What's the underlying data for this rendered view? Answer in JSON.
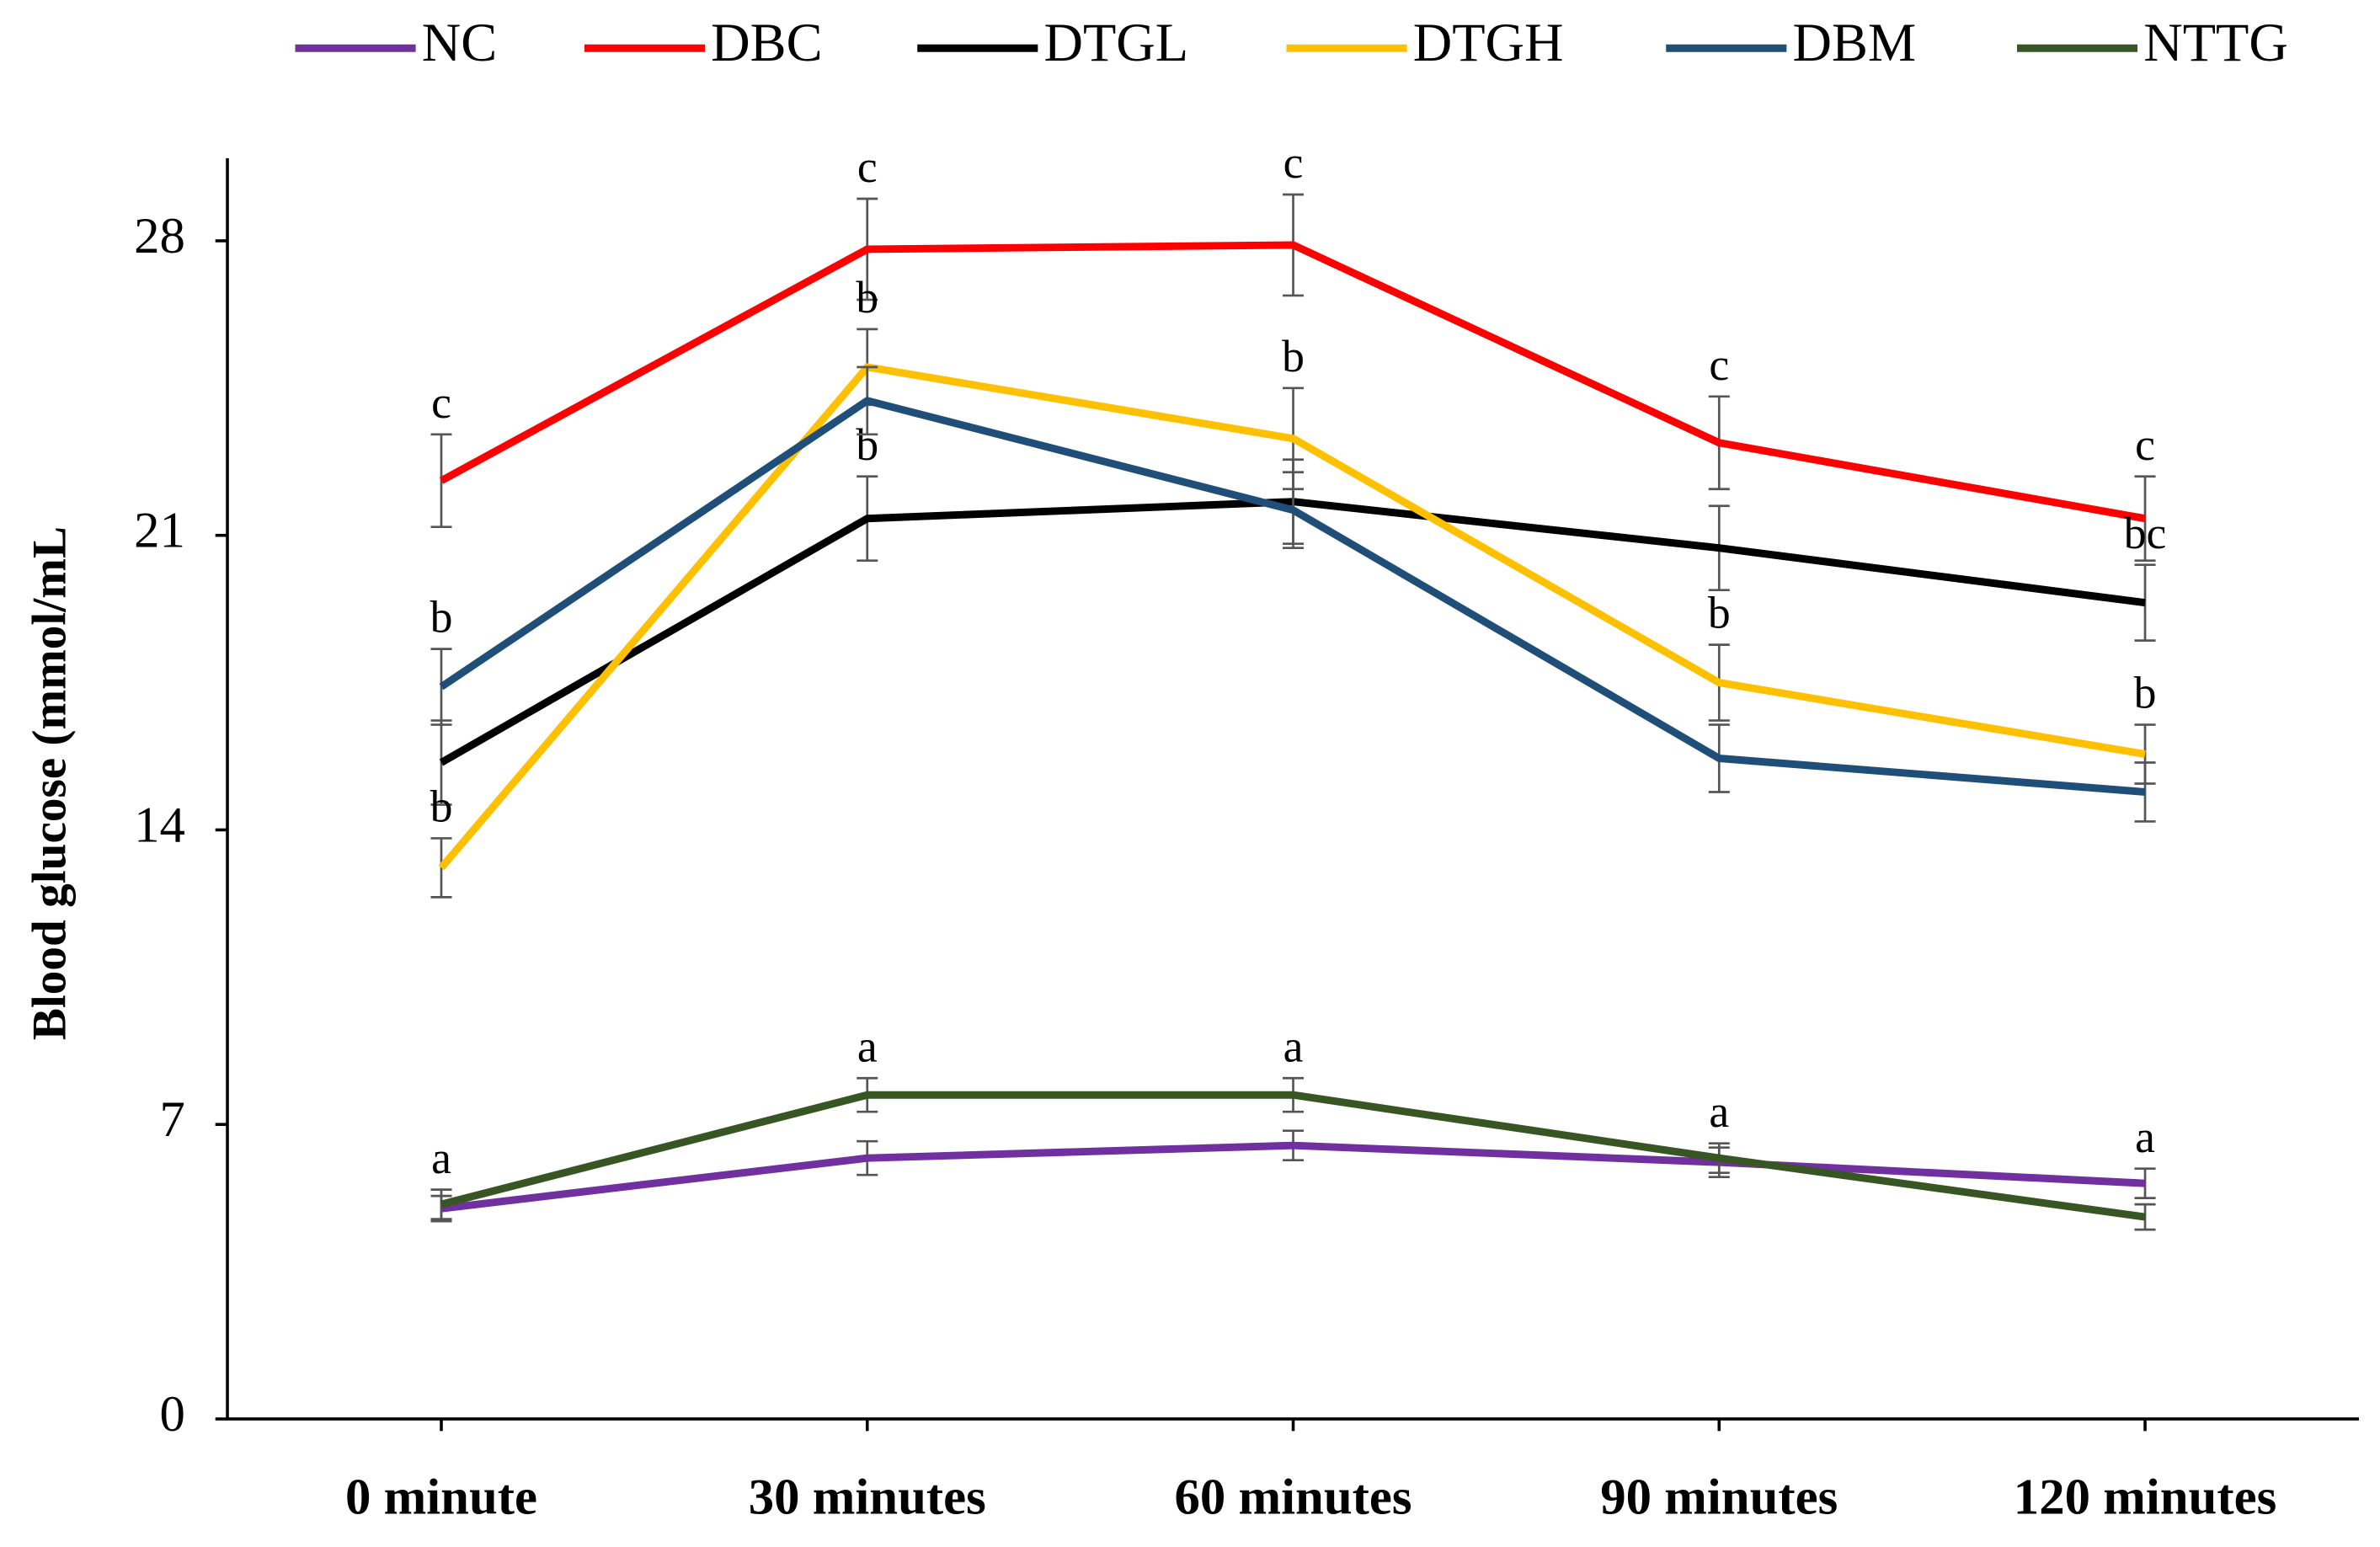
{
  "chart_data": {
    "type": "line",
    "y_label": "Blood glucose (mmol/mL",
    "categories": [
      "0 minute",
      "30 minutes",
      "60 minutes",
      "90 minutes",
      "120 minutes"
    ],
    "ylim": [
      0,
      30
    ],
    "yticks": [
      0,
      7,
      14,
      21,
      28
    ],
    "series": [
      {
        "name": "NC",
        "color": "#7030a0",
        "values": [
          5.0,
          6.2,
          6.5,
          6.1,
          5.6
        ],
        "errors": [
          0.3,
          0.4,
          0.35,
          0.35,
          0.35
        ],
        "letters": [
          null,
          null,
          null,
          null,
          "a"
        ]
      },
      {
        "name": "DBC",
        "color": "#ff0000",
        "values": [
          22.3,
          27.8,
          27.9,
          23.2,
          21.4
        ],
        "errors": [
          1.1,
          1.2,
          1.2,
          1.1,
          1.0
        ],
        "letters": [
          "c",
          "c",
          "c",
          "c",
          "c"
        ]
      },
      {
        "name": "DTGL",
        "color": "#000000",
        "values": [
          15.6,
          21.4,
          21.8,
          20.7,
          19.4
        ],
        "errors": [
          1.0,
          1.0,
          1.0,
          1.0,
          0.9
        ],
        "letters": [
          null,
          "b",
          null,
          null,
          "bc"
        ]
      },
      {
        "name": "DTGH",
        "color": "#ffc000",
        "values": [
          13.1,
          25.0,
          23.3,
          17.5,
          15.8
        ],
        "errors": [
          0.7,
          0.9,
          1.2,
          0.9,
          0.7
        ],
        "letters": [
          "b",
          "b",
          "b",
          "b",
          "b"
        ]
      },
      {
        "name": "DBM",
        "color": "#1f4e79",
        "values": [
          17.4,
          24.2,
          21.6,
          15.7,
          14.9
        ],
        "errors": [
          0.9,
          0.8,
          0.9,
          0.8,
          0.7
        ],
        "letters": [
          "b",
          null,
          null,
          null,
          null
        ]
      },
      {
        "name": "NTTG",
        "color": "#375623",
        "values": [
          5.1,
          7.7,
          7.7,
          6.2,
          4.8
        ],
        "errors": [
          0.35,
          0.4,
          0.4,
          0.35,
          0.3
        ],
        "letters": [
          "a",
          "a",
          "a",
          "a",
          null
        ]
      }
    ]
  }
}
